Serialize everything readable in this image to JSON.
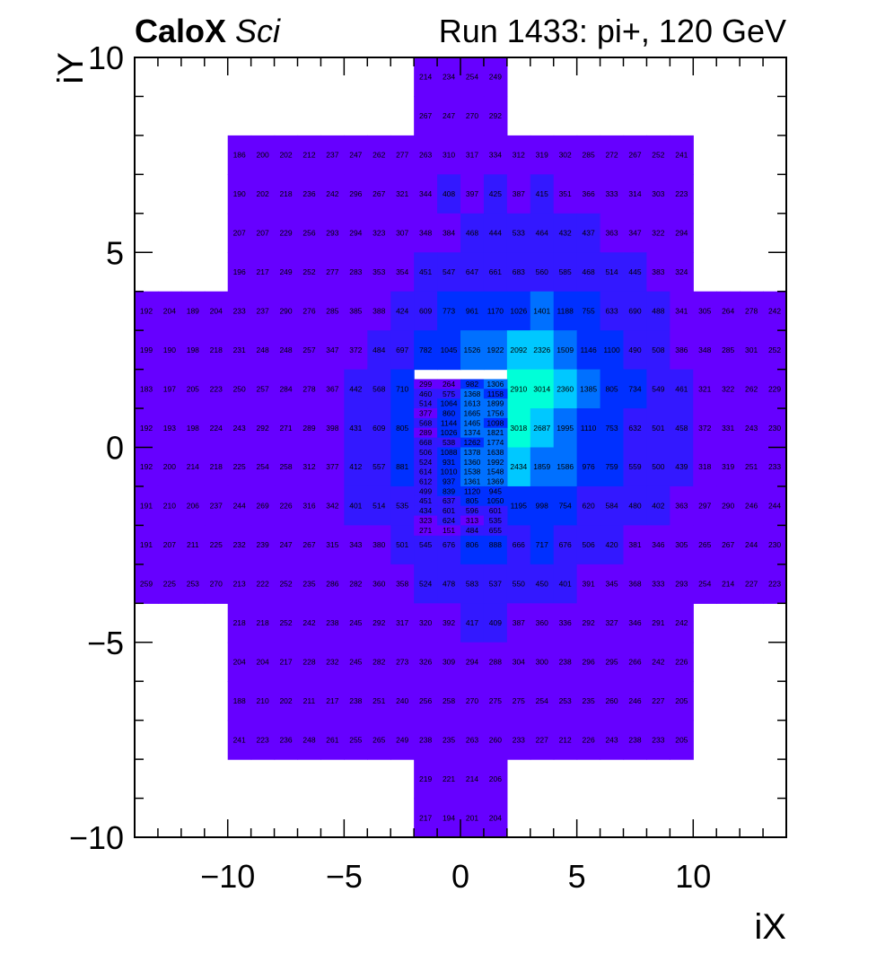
{
  "header": {
    "experiment": "CaloX",
    "detector": "Sci",
    "run_info": "Run 1433: pi+, 120 GeV"
  },
  "chart_data": {
    "type": "heatmap",
    "xlabel": "iX",
    "ylabel": "iY",
    "xlim": [
      -14,
      14
    ],
    "ylim": [
      -10,
      10
    ],
    "x_ticks": [
      -10,
      -5,
      0,
      5,
      10
    ],
    "y_ticks": [
      -10,
      -5,
      0,
      5,
      10
    ],
    "x_tick_labels": [
      "−10",
      "−5",
      "0",
      "5",
      "10"
    ],
    "y_tick_labels": [
      "−10",
      "−5",
      "0",
      "5",
      "10"
    ],
    "colors": {
      "low": "#6600ff",
      "mid_low": "#3318ff",
      "mid": "#0030ff",
      "mid_high": "#0070ff",
      "high": "#00c8ff",
      "peak": "#00ffd8"
    },
    "grid_rows": [
      {
        "y0": 9,
        "y1": 10,
        "x0": -2,
        "values": [
          214,
          234,
          254,
          249
        ]
      },
      {
        "y0": 8,
        "y1": 9,
        "x0": -2,
        "values": [
          267,
          247,
          270,
          292
        ]
      },
      {
        "y0": 7,
        "y1": 8,
        "x0": -10,
        "values": [
          186,
          200,
          202,
          212,
          237,
          247,
          262,
          277,
          263,
          310,
          317,
          334,
          312,
          319,
          302,
          285,
          272,
          267,
          252,
          241
        ]
      },
      {
        "y0": 6,
        "y1": 7,
        "x0": -10,
        "values": [
          190,
          202,
          218,
          236,
          242,
          296,
          267,
          321,
          344,
          408,
          397,
          425,
          387,
          415,
          351,
          366,
          333,
          314,
          303,
          223
        ]
      },
      {
        "y0": 5,
        "y1": 6,
        "x0": -10,
        "values": [
          207,
          207,
          229,
          256,
          293,
          294,
          323,
          307,
          348,
          384,
          468,
          444,
          533,
          464,
          432,
          437,
          363,
          347,
          322,
          294
        ]
      },
      {
        "y0": 4,
        "y1": 5,
        "x0": -10,
        "values": [
          196,
          217,
          249,
          252,
          277,
          283,
          353,
          354,
          451,
          547,
          647,
          661,
          683,
          560,
          585,
          468,
          514,
          445,
          383,
          324
        ]
      },
      {
        "y0": 3,
        "y1": 4,
        "x0": -14,
        "values": [
          192,
          204,
          189,
          204,
          233,
          237,
          290,
          276,
          285,
          385,
          388,
          424,
          609,
          773,
          961,
          1170,
          1026,
          1401,
          1188,
          755,
          633,
          690,
          488,
          341,
          305,
          264,
          278,
          242
        ]
      },
      {
        "y0": 2,
        "y1": 3,
        "x0": -14,
        "values": [
          199,
          190,
          198,
          218,
          231,
          248,
          248,
          257,
          347,
          372,
          484,
          697,
          782,
          1045,
          1526,
          1922,
          2092,
          2326,
          1509,
          1146,
          1100,
          490,
          508,
          386,
          348,
          285,
          301,
          252
        ]
      },
      {
        "y0": 1,
        "y1": 2,
        "x0": -14,
        "values": [
          183,
          197,
          205,
          223,
          250,
          257,
          284,
          278,
          367,
          442,
          568,
          710,
          null,
          null,
          null,
          null,
          2910,
          3014,
          2360,
          1385,
          805,
          734,
          549,
          461,
          321,
          322,
          262,
          229
        ]
      },
      {
        "y0": 0,
        "y1": 1,
        "x0": -14,
        "values": [
          192,
          193,
          198,
          224,
          243,
          292,
          271,
          289,
          398,
          431,
          609,
          805,
          null,
          null,
          null,
          null,
          3018,
          2687,
          1995,
          1110,
          753,
          632,
          501,
          458,
          372,
          331,
          243,
          230
        ]
      },
      {
        "y0": -1,
        "y1": 0,
        "x0": -14,
        "values": [
          192,
          200,
          214,
          218,
          225,
          254,
          258,
          312,
          377,
          412,
          557,
          881,
          null,
          null,
          null,
          null,
          2434,
          1859,
          1586,
          976,
          759,
          559,
          500,
          439,
          318,
          319,
          251,
          233
        ]
      },
      {
        "y0": -2,
        "y1": -1,
        "x0": -14,
        "values": [
          191,
          210,
          206,
          237,
          244,
          269,
          226,
          316,
          342,
          401,
          514,
          535,
          null,
          null,
          null,
          null,
          1195,
          998,
          754,
          620,
          584,
          480,
          402,
          363,
          297,
          290,
          246,
          244
        ]
      },
      {
        "y0": -3,
        "y1": -2,
        "x0": -14,
        "values": [
          191,
          207,
          211,
          225,
          232,
          239,
          247,
          267,
          315,
          343,
          380,
          501,
          545,
          676,
          806,
          888,
          666,
          717,
          676,
          506,
          420,
          381,
          346,
          305,
          265,
          267,
          244,
          230
        ]
      },
      {
        "y0": -4,
        "y1": -3,
        "x0": -14,
        "values": [
          259,
          225,
          253,
          270,
          213,
          222,
          252,
          235,
          286,
          282,
          360,
          358,
          524,
          478,
          583,
          537,
          550,
          450,
          401,
          391,
          345,
          368,
          333,
          293,
          254,
          214,
          227,
          223
        ]
      },
      {
        "y0": -5,
        "y1": -4,
        "x0": -10,
        "values": [
          218,
          218,
          252,
          242,
          238,
          245,
          292,
          317,
          320,
          392,
          417,
          409,
          387,
          360,
          336,
          292,
          327,
          346,
          291,
          242
        ]
      },
      {
        "y0": -6,
        "y1": -5,
        "x0": -10,
        "values": [
          204,
          204,
          217,
          228,
          232,
          245,
          282,
          273,
          326,
          309,
          294,
          288,
          304,
          300,
          238,
          296,
          295,
          266,
          242,
          226
        ]
      },
      {
        "y0": -7,
        "y1": -6,
        "x0": -10,
        "values": [
          188,
          210,
          202,
          211,
          217,
          238,
          251,
          240,
          256,
          258,
          270,
          275,
          275,
          254,
          253,
          235,
          260,
          246,
          227,
          205
        ]
      },
      {
        "y0": -8,
        "y1": -7,
        "x0": -10,
        "values": [
          241,
          223,
          236,
          248,
          261,
          255,
          265,
          249,
          238,
          235,
          263,
          260,
          233,
          227,
          212,
          226,
          243,
          238,
          233,
          205
        ]
      },
      {
        "y0": -9,
        "y1": -8,
        "x0": -2,
        "values": [
          219,
          221,
          214,
          206
        ]
      },
      {
        "y0": -10,
        "y1": -9,
        "x0": -2,
        "values": [
          217,
          194,
          201,
          204
        ]
      }
    ],
    "fine_grid": {
      "x0": -2,
      "cell_width": 1,
      "rows": [
        {
          "y": 1.75,
          "values": [
            299,
            264,
            982,
            1306
          ]
        },
        {
          "y": 1.5,
          "values": [
            460,
            575,
            1368,
            1158
          ]
        },
        {
          "y": 1.25,
          "values": [
            514,
            1064,
            1613,
            1899
          ]
        },
        {
          "y": 1.0,
          "values": [
            377,
            860,
            1665,
            1756
          ]
        },
        {
          "y": 0.75,
          "values": [
            568,
            1144,
            1465,
            1098
          ]
        },
        {
          "y": 0.5,
          "values": [
            289,
            1026,
            1374,
            1821
          ]
        },
        {
          "y": 0.25,
          "values": [
            668,
            538,
            1262,
            1774
          ]
        },
        {
          "y": 0.0,
          "values": [
            506,
            1088,
            1378,
            1638
          ]
        },
        {
          "y": -0.25,
          "values": [
            524,
            931,
            1360,
            1992
          ]
        },
        {
          "y": -0.5,
          "values": [
            614,
            1010,
            1538,
            1548
          ]
        },
        {
          "y": -0.75,
          "values": [
            612,
            937,
            1361,
            1369
          ]
        },
        {
          "y": -1.0,
          "values": [
            499,
            839,
            1120,
            945
          ]
        },
        {
          "y": -1.25,
          "values": [
            451,
            637,
            805,
            1050
          ]
        },
        {
          "y": -1.5,
          "values": [
            434,
            601,
            596,
            601
          ]
        },
        {
          "y": -1.75,
          "values": [
            323,
            624,
            313,
            535
          ]
        },
        {
          "y": -2.0,
          "values": [
            271,
            151,
            484,
            655
          ]
        }
      ]
    }
  }
}
